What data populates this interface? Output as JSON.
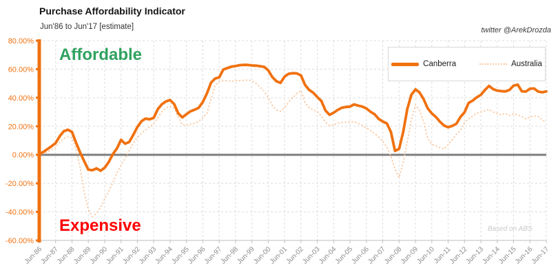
{
  "header": {
    "title": "Purchase Affordability Indicator",
    "subtitle": "Jun'86 to Jun'17 [estimate]",
    "credit": "twitter @ArekDrozda"
  },
  "annotations": {
    "affordable_label": "Affordable",
    "expensive_label": "Expensive",
    "source_note": "Based on ABS"
  },
  "legend": {
    "items": [
      {
        "label": "Canberra",
        "style": "solid",
        "color": "#F0710F"
      },
      {
        "label": "Australia",
        "style": "dotted",
        "color": "#FAC9A2"
      }
    ]
  },
  "colors": {
    "canberra_line": "#F0710F",
    "australia_line": "#FAC9A2",
    "y_axis": "#F0710F",
    "y_tick_label": "#F0710F",
    "zero_line": "#7F7F7F",
    "gridline": "#DCDCDC",
    "bottom_axis": "#BFBFBF",
    "x_tick_label": "#8C8C8C",
    "affordable_text": "#2FA25F",
    "expensive_text": "#FF0000",
    "watermark_text": "#C8C8C8"
  },
  "chart_data": {
    "type": "line",
    "title": "Purchase Affordability Indicator",
    "subtitle": "Jun'86 to Jun'17 [estimate]",
    "xlabel": "",
    "ylabel": "",
    "ylim": [
      -60,
      80
    ],
    "grid": "dashed",
    "legend_position": "top-right",
    "zero_line": true,
    "y_ticks": [
      80,
      60,
      40,
      20,
      0,
      -20,
      -40,
      -60
    ],
    "y_tick_suffix": "%",
    "x_tick_labels": [
      "Jun-86",
      "Jun-87",
      "Jun-88",
      "Jun-89",
      "Jun-90",
      "Jun-91",
      "Jun-92",
      "Jun-93",
      "Jun-94",
      "Jun-95",
      "Jun-96",
      "Jun-97",
      "Jun-98",
      "Jun-99",
      "Jun-00",
      "Jun-01",
      "Jun-02",
      "Jun-03",
      "Jun-04",
      "Jun-05",
      "Jun-06",
      "Jun-07",
      "Jun-08",
      "Jun-09",
      "Jun-10",
      "Jun-11",
      "Jun-12",
      "Jun-13",
      "Jun-14",
      "Jun-15",
      "Jun-16",
      "Jun-17"
    ],
    "x_start": 1986.5,
    "x_step": 0.25,
    "x_end": 2017.5,
    "series": [
      {
        "name": "Australia",
        "style": "dotted",
        "unit": "percent",
        "values": [
          0,
          1,
          2,
          3.5,
          5,
          9,
          11.4,
          12.6,
          11.8,
          4.1,
          -9,
          -26,
          -38.5,
          -43.3,
          -41,
          -36.8,
          -30.8,
          -25.5,
          -19.5,
          -12.5,
          -7.5,
          -2.5,
          3,
          8.5,
          12.3,
          15,
          17.5,
          19.5,
          22,
          26,
          30.3,
          32.8,
          34,
          32.5,
          26.5,
          21,
          20.6,
          21.5,
          22,
          23.4,
          26,
          29,
          39,
          48.5,
          51.5,
          52,
          51.9,
          51.5,
          51.9,
          52,
          52.2,
          52.4,
          52,
          50,
          47.5,
          44.5,
          40.2,
          34.5,
          31.5,
          30.6,
          33,
          37,
          40,
          43,
          45,
          36.5,
          33,
          31.5,
          30.4,
          27,
          23,
          20.3,
          21,
          22,
          22.7,
          23,
          23,
          23.2,
          22,
          20.5,
          19,
          17,
          15,
          12.5,
          9.5,
          5.5,
          -1,
          -10,
          -16,
          -5,
          9,
          24.5,
          35,
          31,
          23.5,
          11.5,
          7.3,
          6.3,
          5,
          4,
          7,
          10.5,
          14.5,
          17,
          22.8,
          25,
          27.3,
          29,
          30,
          31,
          31.8,
          30,
          29,
          28,
          29,
          27.5,
          28.7,
          28,
          26.8,
          25.1,
          26.5,
          27.3,
          27,
          24.5,
          22.7
        ]
      },
      {
        "name": "Canberra",
        "style": "solid",
        "unit": "percent",
        "values": [
          0.5,
          2,
          4,
          6,
          8.2,
          13,
          16.5,
          17.6,
          16,
          8.5,
          1.5,
          -4.6,
          -10.4,
          -10.8,
          -9.5,
          -11.2,
          -9,
          -5,
          0.5,
          4.5,
          10.5,
          7.8,
          9,
          14,
          19.5,
          23.5,
          25.4,
          24.8,
          26,
          32,
          35.5,
          37.4,
          38.4,
          35.5,
          29,
          26.2,
          28.5,
          30.5,
          31.6,
          33,
          37,
          43,
          50.5,
          53.4,
          54.3,
          59.7,
          60.8,
          61.8,
          62.2,
          62.8,
          63,
          63,
          62.6,
          62.5,
          62.1,
          61.6,
          59.2,
          54.5,
          51.5,
          50.4,
          54.8,
          56.8,
          57.2,
          57,
          55.6,
          49,
          45.5,
          43.5,
          40.5,
          37.7,
          31,
          28,
          29.5,
          31.5,
          33,
          33.5,
          33.8,
          35.3,
          34.5,
          33.8,
          32.5,
          30.2,
          28.5,
          25.2,
          23.3,
          22,
          16,
          2.7,
          4.1,
          16,
          32,
          42,
          45.8,
          43.7,
          39,
          32.5,
          29,
          26.5,
          23.2,
          20.5,
          19.3,
          20.3,
          21.7,
          26.5,
          29.8,
          36.3,
          38,
          40.3,
          42,
          45.5,
          48.3,
          46,
          45,
          44.6,
          44.4,
          45.5,
          48.5,
          49.2,
          44.5,
          44.3,
          46.3,
          46.5,
          44.3,
          43.8,
          44.4
        ]
      }
    ]
  }
}
